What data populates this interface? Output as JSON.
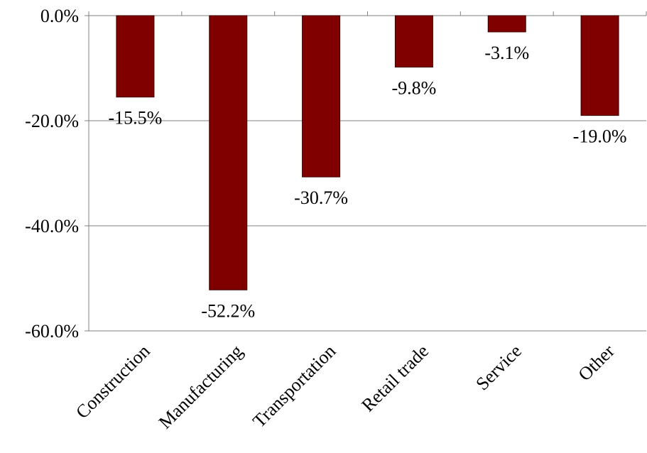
{
  "chart_data": {
    "type": "bar",
    "title": "",
    "xlabel": "",
    "ylabel": "",
    "categories": [
      "Construction",
      "Manufacturing",
      "Transportation",
      "Retail trade",
      "Service",
      "Other"
    ],
    "values": [
      -15.5,
      -52.2,
      -30.7,
      -9.8,
      -3.1,
      -19.0
    ],
    "data_labels": [
      "-15.5%",
      "-52.2%",
      "-30.7%",
      "-9.8%",
      "-3.1%",
      "-19.0%"
    ],
    "ylim": [
      -60,
      0
    ],
    "yticks": [
      0,
      -20,
      -40,
      -60
    ],
    "ytick_labels": [
      "0.0%",
      "-20.0%",
      "-40.0%",
      "-60.0%"
    ],
    "grid": true,
    "legend": "none",
    "bar_color": "#800000",
    "grid_color": "#808080"
  }
}
